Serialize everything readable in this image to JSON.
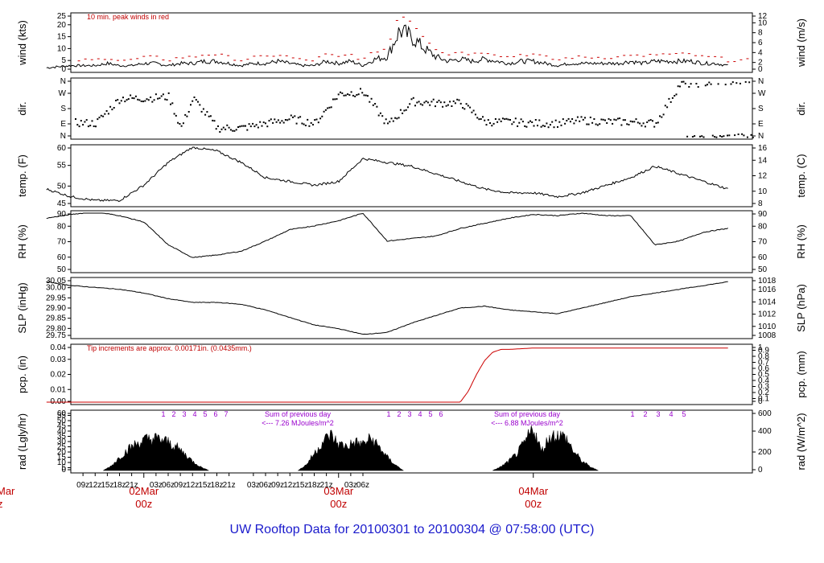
{
  "footer": "UW Rooftop Data for 20100301  to  20100304 @ 07:58:00  (UTC)",
  "x_hour_labels": [
    "09z",
    "12z",
    "15z",
    "18z",
    "21z",
    "03z",
    "06z",
    "09z",
    "12z",
    "15z",
    "18z",
    "21z",
    "03z",
    "06z",
    "09z",
    "12z",
    "15z",
    "18z",
    "21z",
    "03z",
    "06z"
  ],
  "day_labels": [
    {
      "day": "02Mar",
      "z": "00z"
    },
    {
      "day": "03Mar",
      "z": "00z"
    },
    {
      "day": "04Mar",
      "z": "00z"
    },
    {
      "day": "Mar",
      "z": "z"
    }
  ],
  "colors": {
    "red": "#cc0000",
    "purple": "#9900cc",
    "blue": "#1a1acc"
  },
  "chart_data": [
    {
      "type": "line",
      "ylabel_left": "wind (kts)",
      "ylabel_right": "wind (m/s)",
      "ylim": [
        0,
        25
      ],
      "yticks_left": [
        "0",
        "5",
        "10",
        "15",
        "20",
        "25"
      ],
      "yticks_right": [
        "0",
        "2",
        "4",
        "6",
        "8",
        "10",
        "12"
      ],
      "annotation": "10 min. peak winds in red",
      "x_hours": [
        0,
        6,
        12,
        15,
        18,
        21,
        24,
        27,
        30,
        33,
        36,
        39,
        42,
        45,
        48,
        51,
        54,
        57,
        60,
        63,
        66,
        69,
        72,
        75,
        78,
        81,
        84,
        87,
        90,
        93,
        96,
        99,
        102,
        105,
        108,
        111,
        114,
        117,
        120,
        123,
        126,
        129,
        132,
        135,
        138,
        141,
        144,
        147,
        150,
        153,
        156,
        159,
        162,
        165,
        168
      ],
      "values": [
        1,
        2,
        2,
        3,
        2,
        2,
        3,
        3,
        2,
        3,
        3,
        4,
        4,
        3,
        2,
        3,
        3,
        4,
        3,
        2,
        2,
        4,
        3,
        4,
        2,
        5,
        6,
        18,
        15,
        10,
        6,
        4,
        5,
        4,
        5,
        4,
        3,
        4,
        4,
        3,
        2,
        3,
        3,
        3,
        3,
        3,
        4,
        3,
        4,
        4,
        4,
        4,
        3,
        3,
        2
      ]
    },
    {
      "type": "scatter",
      "ylabel_left": "dir.",
      "ylabel_right": "dir.",
      "yticks_left": [
        "N",
        "E",
        "S",
        "W",
        "N"
      ],
      "yticks_right": [
        "N",
        "E",
        "S",
        "W",
        "N"
      ],
      "x_hours": [
        0,
        6,
        12,
        18,
        24,
        30,
        33,
        36,
        42,
        48,
        54,
        60,
        66,
        72,
        78,
        84,
        90,
        96,
        102,
        108,
        114,
        120,
        126,
        132,
        138,
        144,
        150,
        156,
        162,
        168
      ],
      "values": [
        90,
        95,
        90,
        250,
        250,
        260,
        60,
        250,
        60,
        60,
        90,
        120,
        90,
        280,
        290,
        80,
        230,
        220,
        220,
        100,
        100,
        90,
        90,
        110,
        100,
        100,
        90,
        340,
        350,
        360
      ]
    },
    {
      "type": "line",
      "ylabel_left": "temp. (F)",
      "ylabel_right": "temp. (C)",
      "ylim": [
        45,
        60
      ],
      "yticks_left": [
        "45",
        "50",
        "55",
        "60"
      ],
      "yticks_right": [
        "8",
        "10",
        "12",
        "14",
        "16"
      ],
      "x_hours": [
        0,
        6,
        12,
        18,
        24,
        30,
        36,
        42,
        48,
        54,
        60,
        66,
        72,
        78,
        84,
        90,
        96,
        102,
        108,
        114,
        120,
        126,
        132,
        138,
        144,
        150,
        156,
        162,
        168
      ],
      "values": [
        49,
        47,
        46,
        46,
        50,
        56,
        60,
        59,
        56,
        52,
        51,
        50,
        51,
        57,
        56,
        55,
        53,
        51,
        49,
        48,
        48,
        47,
        48,
        50,
        52,
        55,
        53,
        51,
        49
      ]
    },
    {
      "type": "line",
      "ylabel_left": "RH (%)",
      "ylabel_right": "RH (%)",
      "ylim": [
        45,
        90
      ],
      "yticks_left": [
        "50",
        "60",
        "70",
        "80",
        "90"
      ],
      "yticks_right": [
        "50",
        "60",
        "70",
        "80",
        "90"
      ],
      "x_hours": [
        0,
        6,
        12,
        18,
        24,
        30,
        36,
        42,
        48,
        54,
        60,
        66,
        72,
        78,
        84,
        90,
        96,
        102,
        108,
        114,
        120,
        126,
        132,
        138,
        144,
        150,
        156,
        162,
        168
      ],
      "values": [
        86,
        89,
        91,
        88,
        83,
        65,
        55,
        57,
        60,
        68,
        77,
        80,
        84,
        90,
        68,
        70,
        72,
        78,
        82,
        86,
        89,
        88,
        90,
        88,
        88,
        65,
        68,
        75,
        78
      ]
    },
    {
      "type": "line",
      "ylabel_left": "SLP (inHg)",
      "ylabel_right": "SLP (hPa)",
      "ylim": [
        29.75,
        30.05
      ],
      "yticks_left": [
        "29.75",
        "29.80",
        "29.85",
        "29.90",
        "29.95",
        "30.00",
        "30.05"
      ],
      "yticks_right": [
        "1008",
        "1010",
        "1012",
        "1014",
        "1016",
        "1018"
      ],
      "x_hours": [
        0,
        6,
        12,
        18,
        24,
        30,
        36,
        42,
        48,
        54,
        60,
        66,
        72,
        78,
        84,
        90,
        96,
        102,
        108,
        114,
        120,
        126,
        132,
        138,
        144,
        150,
        156,
        162,
        168
      ],
      "values": [
        30.04,
        30.02,
        30.01,
        30.0,
        29.98,
        29.95,
        29.93,
        29.93,
        29.92,
        29.89,
        29.85,
        29.81,
        29.79,
        29.76,
        29.77,
        29.82,
        29.86,
        29.9,
        29.91,
        29.89,
        29.88,
        29.87,
        29.9,
        29.93,
        29.96,
        29.98,
        30.0,
        30.02,
        30.04
      ]
    },
    {
      "type": "line",
      "ylabel_left": "pcp. (in)",
      "ylabel_right": "pcp. (mm)",
      "ylim": [
        0,
        0.04
      ],
      "yticks_left": [
        "0.00",
        "0.01",
        "0.02",
        "0.03",
        "0.04"
      ],
      "yticks_right": [
        "0",
        "0.1",
        "0.2",
        "0.3",
        "0.4",
        "0.5",
        "0.6",
        "0.7",
        "0.8",
        "0.9",
        "1"
      ],
      "annotation": "Tip increments are approx. 0.00171in. (0.0435mm.)",
      "x_hours": [
        0,
        102,
        104,
        106,
        108,
        110,
        112,
        114,
        120,
        168
      ],
      "values": [
        0,
        0,
        0.008,
        0.02,
        0.03,
        0.036,
        0.038,
        0.038,
        0.039,
        0.039
      ]
    },
    {
      "type": "area",
      "ylabel_left": "rad (Lgly/hr)",
      "ylabel_right": "rad (W/m^2)",
      "ylim": [
        0,
        60
      ],
      "yticks_left": [
        "0",
        "5",
        "10",
        "15",
        "20",
        "25",
        "30",
        "35",
        "40",
        "45",
        "50",
        "55",
        "60"
      ],
      "yticks_right": [
        "0",
        "200",
        "400",
        "600"
      ],
      "annotations": [
        {
          "text": "Sum of previous day",
          "line2": "<--- 7.26 MJoules/m^2"
        },
        {
          "text": "Sum of previous day",
          "line2": "<--- 6.88 MJoules/m^2"
        }
      ],
      "hour_marks": [
        {
          "labels": [
            "1",
            "2",
            "3",
            "4",
            "5",
            "6",
            "7"
          ]
        },
        {
          "labels": [
            "1",
            "2",
            "3",
            "4",
            "5",
            "6"
          ]
        },
        {
          "labels": [
            "1",
            "2",
            "3",
            "4",
            "5"
          ]
        }
      ],
      "x_hours": [
        14,
        16,
        18,
        20,
        22,
        24,
        26,
        28,
        30,
        32,
        34,
        36,
        38,
        40,
        62,
        64,
        66,
        68,
        70,
        72,
        74,
        76,
        78,
        80,
        82,
        84,
        86,
        88,
        110,
        112,
        114,
        116,
        118,
        120,
        122,
        124,
        126,
        128,
        130,
        132,
        134,
        136
      ],
      "values": [
        0,
        5,
        14,
        22,
        28,
        32,
        34,
        33,
        30,
        25,
        18,
        10,
        4,
        0,
        0,
        6,
        18,
        30,
        38,
        28,
        26,
        30,
        28,
        34,
        25,
        14,
        6,
        0,
        0,
        4,
        10,
        18,
        30,
        46,
        20,
        36,
        38,
        35,
        20,
        10,
        4,
        0
      ]
    }
  ]
}
